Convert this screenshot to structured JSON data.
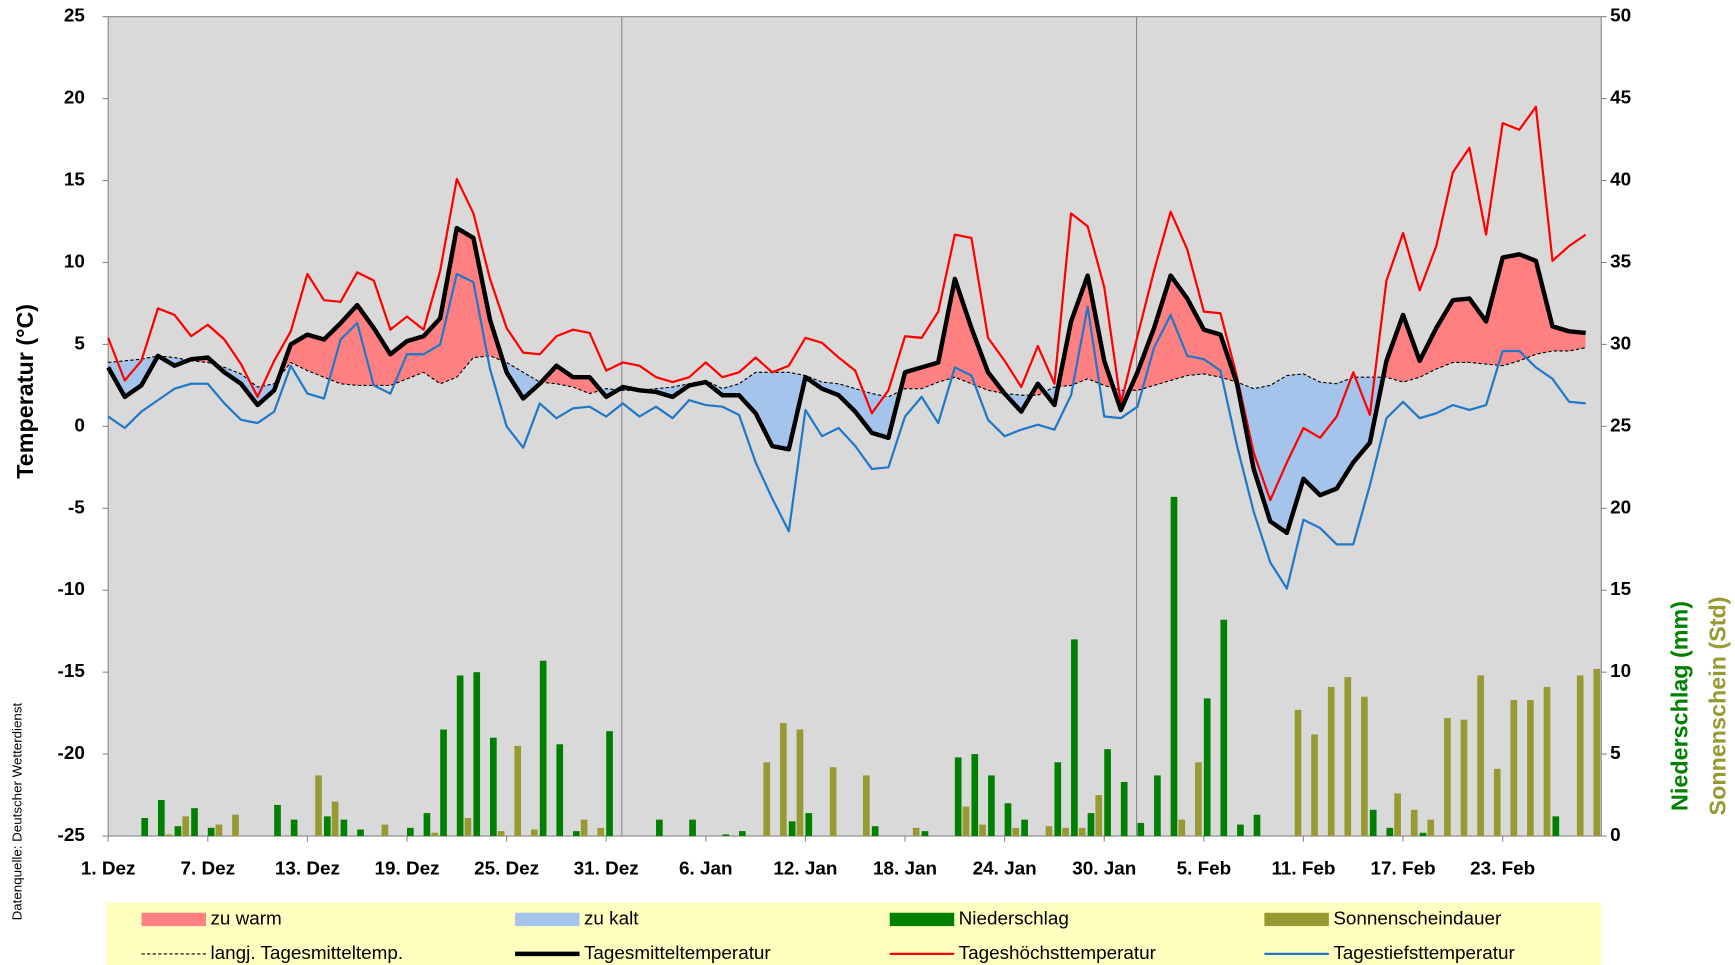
{
  "chart_data": {
    "type": "line",
    "y_label": "Temperatur (°C)",
    "y2_titles": [
      {
        "text": "Niederschlag (mm)",
        "color": "#008000"
      },
      {
        "text": "Sonnenschein (Std)",
        "color": "#999933"
      }
    ],
    "source": "Datenquelle: Deutscher Wetterdienst",
    "categories": [
      "1. Dez",
      null,
      null,
      null,
      null,
      null,
      "7. Dez",
      null,
      null,
      null,
      null,
      null,
      "13. Dez",
      null,
      null,
      null,
      null,
      null,
      "19. Dez",
      null,
      null,
      null,
      null,
      null,
      "25. Dez",
      null,
      null,
      null,
      null,
      null,
      "31. Dez",
      null,
      null,
      null,
      null,
      null,
      "6. Jan",
      null,
      null,
      null,
      null,
      null,
      "12. Jan",
      null,
      null,
      null,
      null,
      null,
      "18. Jan",
      null,
      null,
      null,
      null,
      null,
      "24. Jan",
      null,
      null,
      null,
      null,
      null,
      "30. Jan",
      null,
      null,
      null,
      null,
      null,
      "5. Feb",
      null,
      null,
      null,
      null,
      null,
      "11. Feb",
      null,
      null,
      null,
      null,
      null,
      "17. Feb",
      null,
      null,
      null,
      null,
      null,
      "23. Feb",
      null,
      null,
      null,
      null,
      null
    ],
    "ylim": [
      -25,
      25
    ],
    "yticks": [
      -25,
      -20,
      -15,
      -10,
      -5,
      0,
      5,
      10,
      15,
      20,
      25
    ],
    "y2lim": [
      0,
      50
    ],
    "y2ticks": [
      0,
      5,
      10,
      15,
      20,
      25,
      30,
      35,
      40,
      45,
      50
    ],
    "areas": [
      {
        "name": "zu warm",
        "color": "#ff8080",
        "above": 1,
        "below": 0
      },
      {
        "name": "zu kalt",
        "color": "#a4c4ec",
        "above": 0,
        "below": 1
      }
    ],
    "series": [
      {
        "name": "Niederschlag",
        "kind": "bar",
        "axis": "y2",
        "color": "#008000",
        "values": [
          0,
          0,
          1.1,
          2.2,
          0.6,
          1.7,
          0.5,
          0,
          0,
          0,
          1.9,
          1.0,
          0,
          1.2,
          1.0,
          0.4,
          0,
          0,
          0.5,
          1.4,
          6.5,
          9.8,
          10.0,
          6.0,
          0,
          0,
          10.7,
          5.6,
          0.3,
          0,
          6.4,
          0,
          0,
          1.0,
          0,
          1.0,
          0,
          0.1,
          0.3,
          0,
          0,
          0.9,
          1.4,
          0,
          0,
          0,
          0.6,
          0,
          0,
          0.3,
          0,
          4.8,
          5.0,
          3.7,
          2.0,
          1.0,
          0,
          4.5,
          12.0,
          1.4,
          5.3,
          3.3,
          0.8,
          3.7,
          20.7,
          0,
          8.4,
          13.2,
          0.7,
          1.3,
          0,
          0,
          0,
          0,
          0,
          0,
          1.6,
          0.5,
          0,
          0.2,
          0,
          0,
          0,
          0,
          0,
          0,
          0,
          1.2,
          0,
          0
        ]
      },
      {
        "name": "Sonnenscheindauer",
        "kind": "bar",
        "axis": "y2",
        "color": "#999933",
        "values": [
          0,
          0,
          0,
          0.1,
          1.2,
          0,
          0.7,
          1.3,
          0,
          0,
          0,
          0,
          3.7,
          2.1,
          0,
          0,
          0.7,
          0,
          0,
          0.2,
          0,
          1.1,
          0,
          0.3,
          5.5,
          0.4,
          0,
          0,
          1.0,
          0.5,
          0,
          0,
          0,
          0,
          0,
          0,
          0,
          0,
          0,
          4.5,
          6.9,
          6.5,
          0,
          4.2,
          0,
          3.7,
          0,
          0,
          0.5,
          0,
          0,
          1.8,
          0.7,
          0,
          0.5,
          0,
          0.6,
          0.5,
          0.5,
          2.5,
          0,
          0,
          0,
          0,
          1.0,
          4.5,
          0,
          0,
          0,
          0,
          0,
          7.7,
          6.2,
          9.1,
          9.7,
          8.5,
          0,
          2.6,
          1.6,
          1.0,
          7.2,
          7.1,
          9.8,
          4.1,
          8.3,
          8.3,
          9.1,
          0,
          9.8,
          10.2
        ]
      },
      {
        "name": "langj. Tagesmitteltemp.",
        "kind": "line",
        "color": "#000000",
        "width": 1,
        "dash": true,
        "reference": true,
        "values": [
          3.9,
          4.0,
          4.1,
          4.3,
          4.2,
          4.0,
          3.9,
          3.6,
          3.2,
          2.4,
          2.6,
          3.9,
          3.4,
          3.0,
          2.6,
          2.5,
          2.5,
          2.5,
          2.9,
          3.3,
          2.6,
          3.0,
          4.2,
          4.3,
          3.9,
          3.3,
          2.7,
          2.6,
          2.4,
          2.0,
          2.3,
          2.2,
          2.2,
          2.3,
          2.4,
          2.6,
          2.8,
          2.3,
          2.6,
          3.3,
          3.3,
          3.3,
          3.1,
          2.7,
          2.6,
          2.3,
          2.0,
          1.8,
          2.3,
          2.3,
          2.7,
          3.0,
          2.6,
          2.2,
          2.0,
          1.9,
          1.9,
          2.4,
          2.5,
          2.9,
          2.5,
          2.2,
          2.2,
          2.5,
          2.8,
          3.1,
          3.2,
          3.0,
          2.7,
          2.3,
          2.5,
          3.1,
          3.2,
          2.7,
          2.6,
          3.0,
          3.0,
          3.0,
          2.7,
          3.0,
          3.5,
          3.9,
          3.9,
          3.8,
          3.7,
          4.0,
          4.4,
          4.6,
          4.6,
          4.8
        ]
      },
      {
        "name": "Tagesmitteltemperatur",
        "kind": "line",
        "color": "#000000",
        "width": 4,
        "mean": true,
        "values": [
          3.6,
          1.8,
          2.5,
          4.3,
          3.7,
          4.1,
          4.2,
          3.3,
          2.6,
          1.3,
          2.2,
          5.0,
          5.6,
          5.3,
          6.3,
          7.4,
          6.0,
          4.4,
          5.2,
          5.5,
          6.6,
          12.1,
          11.5,
          6.5,
          3.3,
          1.7,
          2.6,
          3.7,
          3.0,
          3.0,
          1.8,
          2.4,
          2.2,
          2.1,
          1.8,
          2.5,
          2.7,
          1.9,
          1.9,
          0.8,
          -1.2,
          -1.4,
          3.0,
          2.3,
          1.9,
          0.9,
          -0.4,
          -0.7,
          3.3,
          3.6,
          3.9,
          9.0,
          6.0,
          3.3,
          2.0,
          0.9,
          2.6,
          1.3,
          6.4,
          9.2,
          4.0,
          1.0,
          3.3,
          6.0,
          9.2,
          7.8,
          5.9,
          5.6,
          2.6,
          -2.6,
          -5.8,
          -6.5,
          -3.2,
          -4.2,
          -3.8,
          -2.2,
          -1.0,
          4.0,
          6.8,
          4.0,
          6.0,
          7.7,
          7.8,
          6.4,
          10.3,
          10.5,
          10.1,
          6.1,
          5.8,
          5.7
        ]
      },
      {
        "name": "Tageshöchsttemperatur",
        "kind": "line",
        "color": "#ff0000",
        "width": 2,
        "values": [
          5.4,
          2.8,
          4.0,
          7.2,
          6.8,
          5.5,
          6.2,
          5.3,
          3.8,
          1.8,
          4.0,
          5.8,
          9.3,
          7.7,
          7.6,
          9.4,
          8.9,
          5.9,
          6.7,
          5.9,
          9.5,
          15.1,
          13.0,
          9.0,
          6.0,
          4.5,
          4.4,
          5.5,
          5.9,
          5.7,
          3.4,
          3.9,
          3.7,
          3.0,
          2.7,
          3.0,
          3.9,
          3.0,
          3.3,
          4.2,
          3.3,
          3.7,
          5.4,
          5.1,
          4.2,
          3.4,
          0.8,
          2.2,
          5.5,
          5.4,
          7.0,
          11.7,
          11.5,
          5.4,
          4.0,
          2.4,
          4.9,
          2.6,
          13.0,
          12.2,
          8.5,
          1.4,
          5.5,
          9.5,
          13.1,
          10.8,
          7.0,
          6.9,
          3.0,
          -1.6,
          -4.5,
          -2.2,
          -0.1,
          -0.7,
          0.6,
          3.3,
          0.7,
          8.9,
          11.8,
          8.3,
          11.0,
          15.5,
          17.0,
          11.7,
          18.5,
          18.1,
          19.5,
          10.1,
          11.0,
          11.7
        ]
      },
      {
        "name": "Tagestiefsttemperatur",
        "kind": "line",
        "color": "#1f78c8",
        "width": 2,
        "values": [
          0.6,
          -0.1,
          0.9,
          1.6,
          2.3,
          2.6,
          2.6,
          1.4,
          0.4,
          0.2,
          0.9,
          3.7,
          2.0,
          1.7,
          5.3,
          6.3,
          2.5,
          2.0,
          4.4,
          4.4,
          5.0,
          9.3,
          8.8,
          3.5,
          0.0,
          -1.3,
          1.4,
          0.5,
          1.1,
          1.2,
          0.6,
          1.4,
          0.6,
          1.2,
          0.5,
          1.6,
          1.3,
          1.2,
          0.7,
          -2.2,
          -4.4,
          -6.4,
          1.0,
          -0.6,
          -0.1,
          -1.2,
          -2.6,
          -2.5,
          0.6,
          1.8,
          0.2,
          3.6,
          3.1,
          0.4,
          -0.6,
          -0.2,
          0.1,
          -0.2,
          1.9,
          7.3,
          0.6,
          0.5,
          1.2,
          4.8,
          6.8,
          4.3,
          4.1,
          3.4,
          -1.2,
          -5.2,
          -8.3,
          -9.9,
          -5.7,
          -6.2,
          -7.2,
          -7.2,
          -3.6,
          0.5,
          1.5,
          0.5,
          0.8,
          1.3,
          1.0,
          1.3,
          4.6,
          4.6,
          3.6,
          2.9,
          1.5,
          1.4
        ]
      }
    ],
    "legend_background": "#ffffc0"
  }
}
